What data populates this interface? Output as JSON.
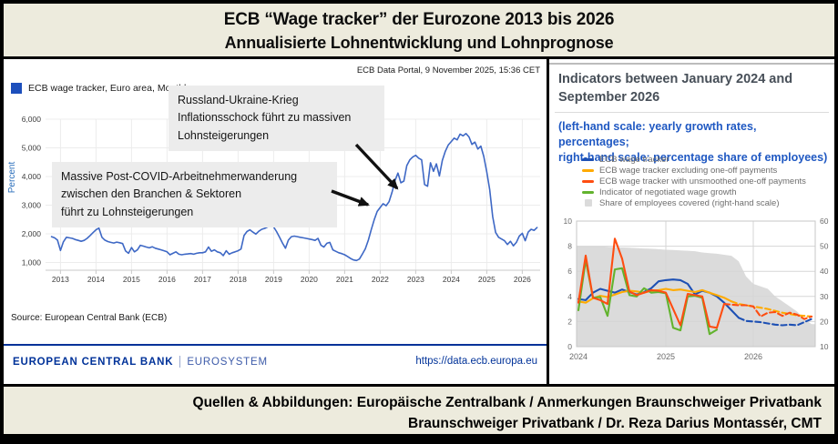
{
  "title": {
    "line1": "ECB “Wage tracker” der Eurozone 2013 bis 2026",
    "line2": "Annualisierte Lohnentwicklung und Lohnprognose"
  },
  "left_panel": {
    "caption": "ECB Data Portal, 9 November 2025, 15:36 CET",
    "legend_label": "ECB wage tracker, Euro area, Monthly",
    "legend_color": "#1d4fbc",
    "ylabel": "Percent",
    "annotations": [
      {
        "text": "Russland-Ukraine-Krieg\nInflationsschock führt zu massiven\nLohnsteigerungen"
      },
      {
        "text": "Massive Post-COVID-Arbeitnehmerwanderung\nzwischen den Branchen & Sektoren\nführt zu Lohnsteigerungen"
      }
    ],
    "source": "Source: European Central Bank (ECB)",
    "brand_primary": "EUROPEAN CENTRAL BANK",
    "brand_secondary": "EUROSYSTEM",
    "link": "https://data.ecb.europa.eu",
    "brand_color": "#003299"
  },
  "right_panel": {
    "title": "Indicators between January 2024 and September 2026",
    "subtitle": "(left-hand scale: yearly growth rates, percentages;\nright-hand scale: percentage share of employees)"
  },
  "footer": {
    "line1": "Quellen & Abbildungen: Europäische Zentralbank / Anmerkungen Braunschweiger Privatbank",
    "line2": "Braunschweiger Privatbank / Dr. Reza Darius Montassér, CMT"
  },
  "chart_data": [
    {
      "id": "ecb-wage-tracker-monthly",
      "type": "line",
      "title": "ECB wage tracker, Euro area, Monthly",
      "ylabel": "Percent",
      "grid": true,
      "line_color": "#3e68c5",
      "x_start": 2012.75,
      "x_step": 0.0833333,
      "xticks": [
        2013,
        2014,
        2015,
        2016,
        2017,
        2018,
        2019,
        2020,
        2021,
        2022,
        2023,
        2024,
        2025,
        2026
      ],
      "yticks": [
        1,
        2,
        3,
        4,
        5,
        6
      ],
      "ytick_labels": [
        "1,000",
        "2,000",
        "3,000",
        "4,000",
        "5,000",
        "6,000"
      ],
      "ylim": [
        0.74,
        6.5
      ],
      "values": [
        1.9,
        1.86,
        1.78,
        1.42,
        1.72,
        1.88,
        1.86,
        1.84,
        1.8,
        1.77,
        1.74,
        1.77,
        1.84,
        1.94,
        2.04,
        2.14,
        2.2,
        1.88,
        1.78,
        1.73,
        1.7,
        1.68,
        1.71,
        1.69,
        1.66,
        1.4,
        1.32,
        1.52,
        1.37,
        1.44,
        1.6,
        1.57,
        1.54,
        1.51,
        1.55,
        1.5,
        1.47,
        1.44,
        1.41,
        1.37,
        1.27,
        1.32,
        1.37,
        1.29,
        1.27,
        1.29,
        1.3,
        1.31,
        1.29,
        1.32,
        1.34,
        1.34,
        1.37,
        1.54,
        1.39,
        1.44,
        1.37,
        1.34,
        1.24,
        1.41,
        1.29,
        1.34,
        1.37,
        1.41,
        1.47,
        1.94,
        2.08,
        2.14,
        2.06,
        1.99,
        2.09,
        2.16,
        2.19,
        2.24,
        2.3,
        2.24,
        2.08,
        1.88,
        1.68,
        1.5,
        1.78,
        1.9,
        1.92,
        1.9,
        1.88,
        1.86,
        1.84,
        1.82,
        1.8,
        1.77,
        1.84,
        1.6,
        1.54,
        1.67,
        1.7,
        1.44,
        1.39,
        1.34,
        1.31,
        1.27,
        1.21,
        1.14,
        1.09,
        1.07,
        1.12,
        1.3,
        1.48,
        1.78,
        2.15,
        2.5,
        2.78,
        2.92,
        3.05,
        2.98,
        3.12,
        3.45,
        3.85,
        4.12,
        3.78,
        3.84,
        4.38,
        4.58,
        4.68,
        4.74,
        4.64,
        4.58,
        3.72,
        3.66,
        4.48,
        4.18,
        4.44,
        4.02,
        4.56,
        4.88,
        5.1,
        5.22,
        5.34,
        5.28,
        5.48,
        5.42,
        5.5,
        5.38,
        5.12,
        5.2,
        4.96,
        5.06,
        4.7,
        4.16,
        3.55,
        2.6,
        2.05,
        1.88,
        1.82,
        1.76,
        1.63,
        1.74,
        1.58,
        1.7,
        1.92,
        2.02,
        1.76,
        2.06,
        2.16,
        2.12,
        2.22
      ]
    },
    {
      "id": "indicators-jan2024-sep2026",
      "type": "line",
      "x_monthly_from": "2024-01",
      "x_monthly_to": "2026-09",
      "xticks": [
        "2024",
        "2025",
        "2026"
      ],
      "left_ylim": [
        0,
        10
      ],
      "left_yticks": [
        0,
        2,
        4,
        6,
        8,
        10
      ],
      "right_ylim": [
        10,
        60
      ],
      "right_yticks": [
        10,
        20,
        30,
        40,
        50,
        60
      ],
      "grid": true,
      "series": [
        {
          "name": "ECB wage tracker",
          "color": "#1d50b4",
          "axis": "left",
          "style": "line",
          "dash_from": 22,
          "values": [
            3.8,
            3.7,
            4.3,
            4.6,
            4.45,
            4.3,
            4.55,
            4.35,
            4.15,
            4.35,
            4.65,
            5.2,
            5.3,
            5.35,
            5.3,
            5.0,
            4.15,
            4.45,
            4.3,
            4.0,
            3.5,
            2.9,
            2.3,
            2.05,
            2.0,
            1.95,
            1.85,
            1.75,
            1.7,
            1.75,
            1.7,
            1.95,
            2.2
          ]
        },
        {
          "name": "ECB wage tracker excluding one-off payments",
          "color": "#ffaa00",
          "axis": "left",
          "style": "line",
          "dash_from": 21,
          "values": [
            3.6,
            3.5,
            3.85,
            4.05,
            3.95,
            4.15,
            4.35,
            4.45,
            4.4,
            4.3,
            4.45,
            4.5,
            4.6,
            4.5,
            4.55,
            4.45,
            4.35,
            4.5,
            4.3,
            4.1,
            3.9,
            3.6,
            3.4,
            3.3,
            3.2,
            3.1,
            3.0,
            2.85,
            2.7,
            2.6,
            2.5,
            2.45,
            2.4
          ]
        },
        {
          "name": "ECB wage tracker with unsmoothed one-off payments",
          "color": "#fe4d11",
          "axis": "left",
          "style": "line",
          "dash_from": 20,
          "values": [
            3.5,
            7.25,
            3.9,
            3.7,
            3.4,
            8.6,
            7.0,
            4.4,
            4.1,
            4.3,
            4.5,
            4.45,
            4.3,
            3.0,
            1.7,
            4.2,
            4.1,
            4.0,
            1.6,
            1.5,
            3.4,
            3.35,
            3.3,
            3.3,
            3.2,
            2.4,
            2.7,
            2.75,
            2.45,
            2.7,
            2.55,
            2.2,
            2.4
          ]
        },
        {
          "name": "Indicator of negotiated wage growth",
          "color": "#62b32e",
          "axis": "left",
          "style": "line",
          "dash_from": null,
          "values": [
            2.9,
            6.9,
            3.9,
            3.95,
            2.45,
            6.15,
            6.25,
            4.1,
            4.0,
            4.65,
            4.3,
            4.35,
            4.25,
            1.5,
            1.3,
            4.0,
            4.05,
            3.9,
            1.0,
            1.35
          ]
        },
        {
          "name": "Share of employees covered (right-hand scale)",
          "color": "#dbdbdb",
          "axis": "right",
          "style": "area",
          "dash_from": null,
          "values": [
            50,
            50,
            50,
            50,
            49.8,
            49.6,
            49.5,
            49.4,
            49.2,
            49.1,
            49,
            48.8,
            48.6,
            48.5,
            48.3,
            48.2,
            48,
            47.5,
            47.2,
            47,
            46.6,
            46.2,
            44,
            38,
            35,
            34,
            33,
            30,
            28,
            26,
            24,
            21,
            19
          ]
        }
      ]
    }
  ]
}
